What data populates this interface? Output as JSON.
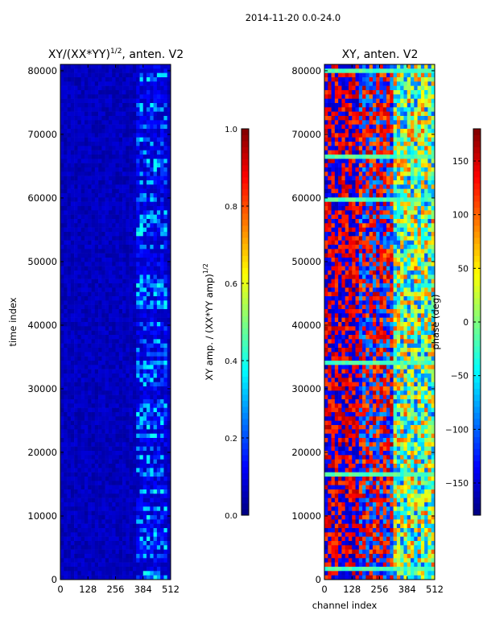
{
  "suptitle": "2014-11-20 0.0-24.0",
  "colors": {
    "jet": [
      "#00007f",
      "#0000ff",
      "#007fff",
      "#00ffff",
      "#7fff7f",
      "#ffff00",
      "#ff7f00",
      "#ff0000",
      "#7f0000"
    ],
    "frame": "#000000"
  },
  "chart_data": [
    {
      "type": "heatmap",
      "title": "XY/(XX*YY)",
      "title_sup": "1/2",
      "title_suffix": ", anten. V2",
      "xlabel": "",
      "ylabel": "time index",
      "xlim": [
        0,
        512
      ],
      "ylim": [
        0,
        81000
      ],
      "xticks": [
        0,
        128,
        256,
        384,
        512
      ],
      "xtick_labels": [
        "0",
        "128",
        "256",
        "384",
        "512"
      ],
      "yticks": [
        0,
        10000,
        20000,
        30000,
        40000,
        50000,
        60000,
        70000,
        80000
      ],
      "ytick_labels": [
        "0",
        "10000",
        "20000",
        "30000",
        "40000",
        "50000",
        "60000",
        "70000",
        "80000"
      ],
      "colorbar": {
        "label": "XY amp. / (XX*YY amp)",
        "label_sup": "1/2",
        "range": [
          0.0,
          1.0
        ],
        "ticks": [
          0.0,
          0.2,
          0.4,
          0.6,
          0.8,
          1.0
        ],
        "tick_labels": [
          "0.0",
          "0.2",
          "0.4",
          "0.6",
          "0.8",
          "1.0"
        ]
      }
    },
    {
      "type": "heatmap",
      "title": "XY, anten. V2",
      "xlabel": "channel index",
      "ylabel": "",
      "xlim": [
        0,
        512
      ],
      "ylim": [
        0,
        81000
      ],
      "xticks": [
        0,
        128,
        256,
        384,
        512
      ],
      "xtick_labels": [
        "0",
        "128",
        "256",
        "384",
        "512"
      ],
      "yticks": [
        0,
        10000,
        20000,
        30000,
        40000,
        50000,
        60000,
        70000,
        80000
      ],
      "ytick_labels": [
        "0",
        "10000",
        "20000",
        "30000",
        "40000",
        "50000",
        "60000",
        "70000",
        "80000"
      ],
      "colorbar": {
        "label": "phase (deg)",
        "range": [
          -180,
          180
        ],
        "ticks": [
          -150,
          -100,
          -50,
          0,
          50,
          100,
          150
        ],
        "tick_labels": [
          "−150",
          "−100",
          "−50",
          "0",
          "50",
          "100",
          "150"
        ]
      }
    }
  ]
}
